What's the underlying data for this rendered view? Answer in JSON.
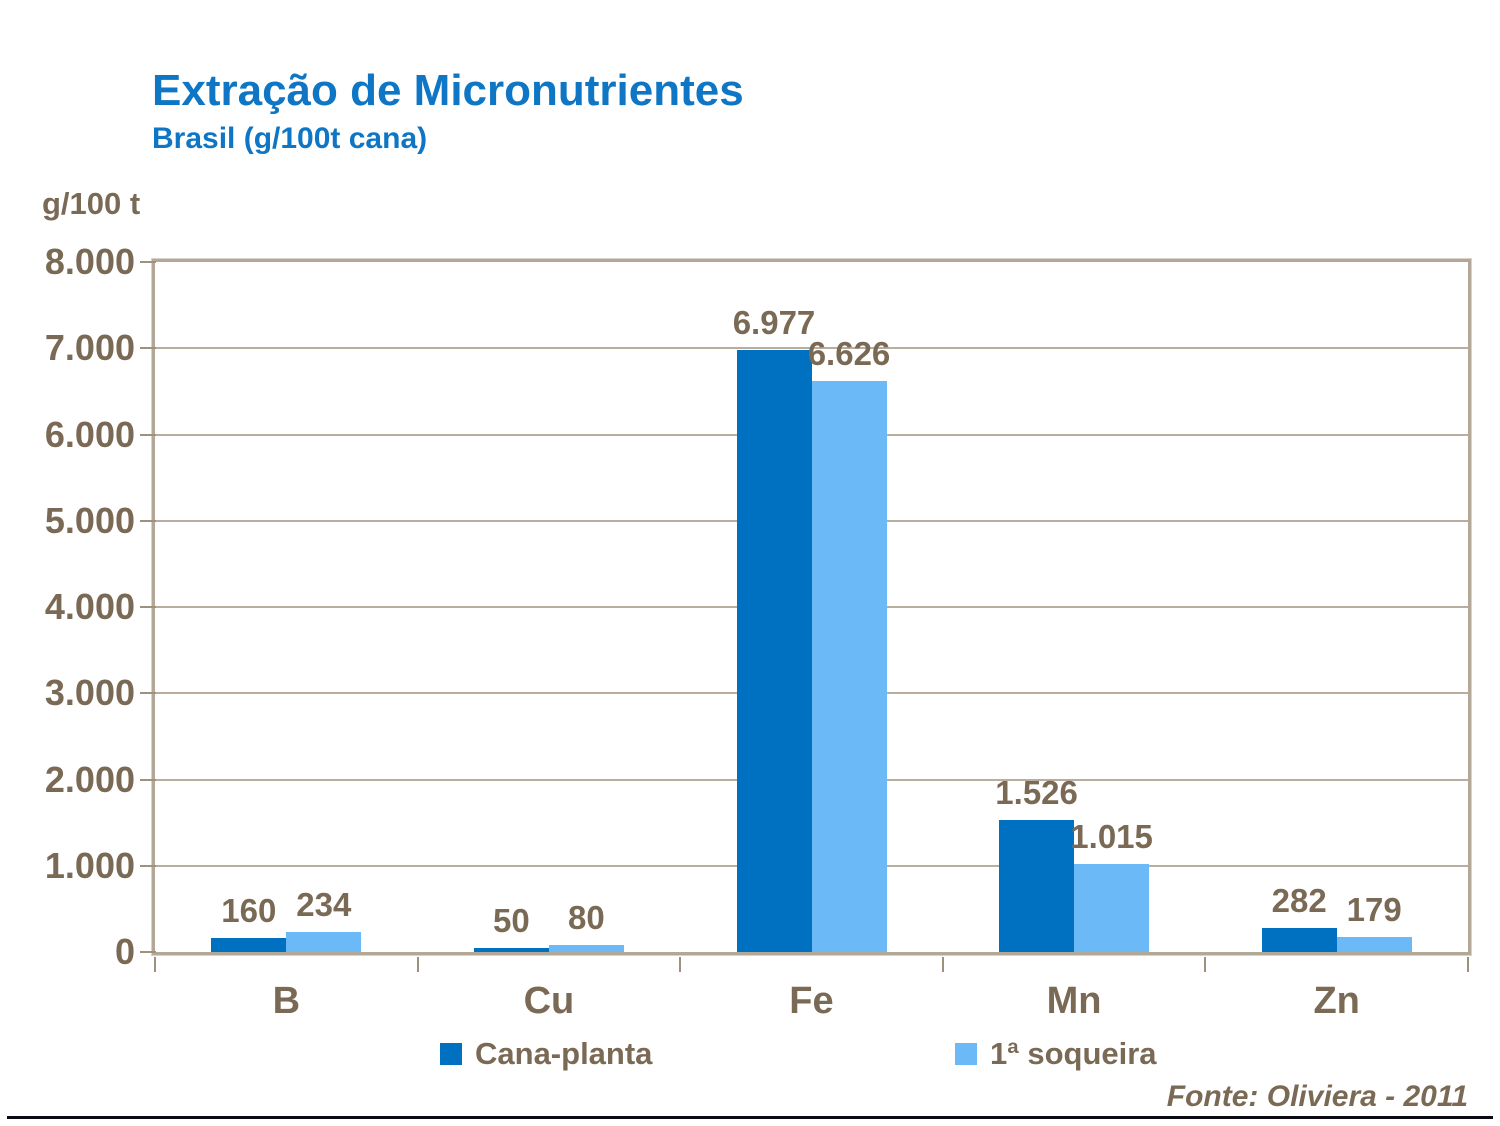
{
  "header": {
    "title": "Extração de Micronutrientes",
    "subtitle": "Brasil (g/100t cana)"
  },
  "axis": {
    "unit_label": "g/100 t"
  },
  "footer": {
    "source": "Fonte: Oliviera - 2011"
  },
  "colors": {
    "title_blue": "#0E76C4",
    "text_brown": "#7A6A55",
    "plot_border": "#B3A797",
    "gridline": "#B9AD9E",
    "tick": "#9E917E",
    "series1": "#0070C0",
    "series2": "#6CB9F7"
  },
  "chart_data": {
    "type": "bar",
    "title": "Extração de Micronutrientes",
    "subtitle": "Brasil (g/100t cana)",
    "categories": [
      "B",
      "Cu",
      "Fe",
      "Mn",
      "Zn"
    ],
    "series": [
      {
        "name": "Cana-planta",
        "color": "#0070C0",
        "values": [
          160,
          50,
          6977,
          1526,
          282
        ],
        "labels": [
          "160",
          "50",
          "6.977",
          "1.526",
          "282"
        ]
      },
      {
        "name": "1ª soqueira",
        "color": "#6CB9F7",
        "values": [
          234,
          80,
          6626,
          1015,
          179
        ],
        "labels": [
          "234",
          "80",
          "6.626",
          "1.015",
          "179"
        ]
      }
    ],
    "xlabel": "",
    "ylabel": "g/100 t",
    "ylim": [
      0,
      8000
    ],
    "ytick_interval": 1000,
    "ytick_labels": [
      "0",
      "1.000",
      "2.000",
      "3.000",
      "4.000",
      "5.000",
      "6.000",
      "7.000",
      "8.000"
    ],
    "grid": "horizontal",
    "legend_position": "bottom"
  }
}
